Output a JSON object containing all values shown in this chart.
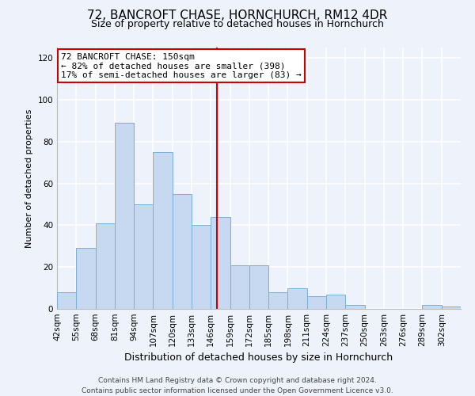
{
  "title": "72, BANCROFT CHASE, HORNCHURCH, RM12 4DR",
  "subtitle": "Size of property relative to detached houses in Hornchurch",
  "xlabel": "Distribution of detached houses by size in Hornchurch",
  "ylabel": "Number of detached properties",
  "bin_labels": [
    "42sqm",
    "55sqm",
    "68sqm",
    "81sqm",
    "94sqm",
    "107sqm",
    "120sqm",
    "133sqm",
    "146sqm",
    "159sqm",
    "172sqm",
    "185sqm",
    "198sqm",
    "211sqm",
    "224sqm",
    "237sqm",
    "250sqm",
    "263sqm",
    "276sqm",
    "289sqm",
    "302sqm"
  ],
  "bin_edges": [
    42,
    55,
    68,
    81,
    94,
    107,
    120,
    133,
    146,
    159,
    172,
    185,
    198,
    211,
    224,
    237,
    250,
    263,
    276,
    289,
    302
  ],
  "bar_heights": [
    8,
    29,
    41,
    89,
    50,
    75,
    55,
    40,
    44,
    21,
    21,
    8,
    10,
    6,
    7,
    2,
    0,
    0,
    0,
    2,
    1
  ],
  "bar_color": "#c6d9f0",
  "bar_edge_color": "#7bafd4",
  "vline_x": 150,
  "vline_color": "#cc0000",
  "annotation_title": "72 BANCROFT CHASE: 150sqm",
  "annotation_line1": "← 82% of detached houses are smaller (398)",
  "annotation_line2": "17% of semi-detached houses are larger (83) →",
  "annotation_box_facecolor": "#ffffff",
  "annotation_box_edgecolor": "#cc0000",
  "ylim": [
    0,
    125
  ],
  "yticks": [
    0,
    20,
    40,
    60,
    80,
    100,
    120
  ],
  "footer1": "Contains HM Land Registry data © Crown copyright and database right 2024.",
  "footer2": "Contains public sector information licensed under the Open Government Licence v3.0.",
  "background_color": "#eef2fa",
  "grid_color": "#ffffff",
  "title_fontsize": 11,
  "subtitle_fontsize": 9,
  "ylabel_fontsize": 8,
  "xlabel_fontsize": 9,
  "tick_fontsize": 7.5,
  "annotation_fontsize": 8,
  "footer_fontsize": 6.5
}
